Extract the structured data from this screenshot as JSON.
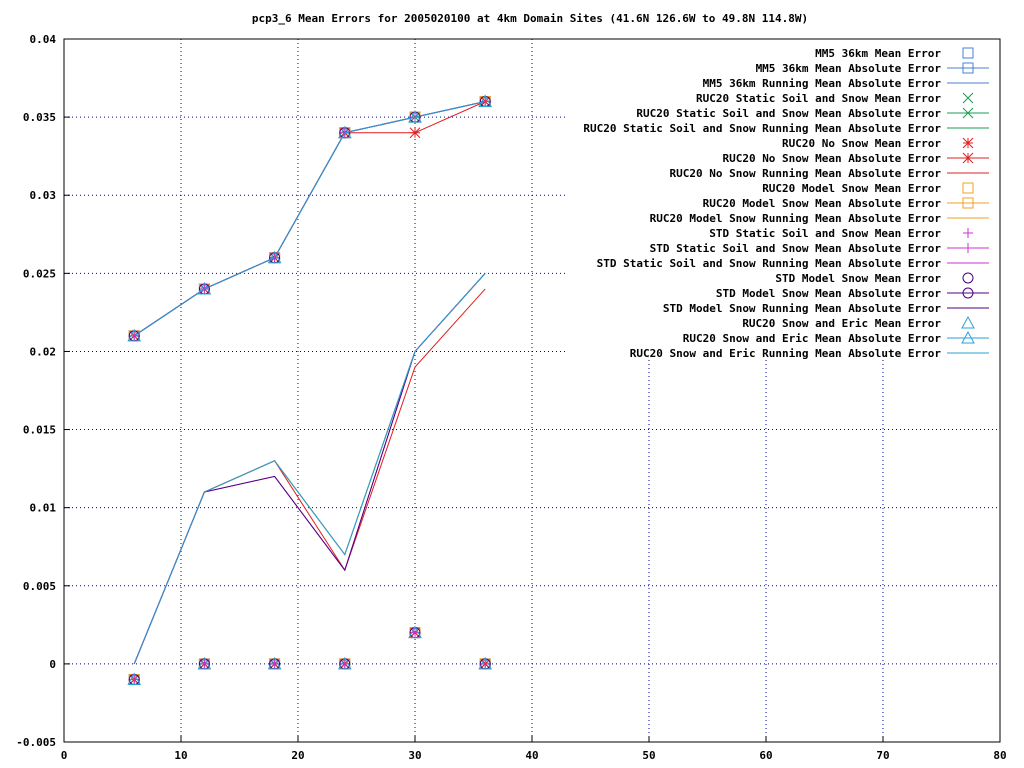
{
  "chart_data": {
    "type": "line",
    "title": "pcp3_6 Mean Errors for 2005020100 at 4km Domain Sites (41.6N 126.6W to 49.8N 114.8W)",
    "xlabel": "",
    "ylabel": "",
    "xlim": [
      0,
      80
    ],
    "ylim": [
      -0.005,
      0.04
    ],
    "xticks": [
      0,
      10,
      20,
      30,
      40,
      50,
      60,
      70,
      80
    ],
    "yticks": [
      -0.005,
      0,
      0.005,
      0.01,
      0.015,
      0.02,
      0.025,
      0.03,
      0.035,
      0.04
    ],
    "ytick_labels": [
      "-0.005",
      "0",
      "0.005",
      "0.01",
      "0.015",
      "0.02",
      "0.025",
      "0.03",
      "0.035",
      "0.04"
    ],
    "grid": true,
    "legend_position": "top-right",
    "x": [
      6,
      12,
      18,
      24,
      30,
      36
    ],
    "series": [
      {
        "name": "MM5 36km Mean Error",
        "style": "points",
        "marker": "square",
        "color": "#4a7fd4",
        "values": [
          -0.001,
          0,
          0,
          0,
          0.002,
          0
        ]
      },
      {
        "name": "MM5 36km Mean Absolute Error",
        "style": "linespoints",
        "marker": "square",
        "color": "#4a7fd4",
        "values": [
          0.021,
          0.024,
          0.026,
          0.034,
          0.035,
          0.036
        ]
      },
      {
        "name": "MM5 36km Running Mean Absolute Error",
        "style": "line",
        "marker": "none",
        "color": "#4a7fd4",
        "values": [
          0,
          0.011,
          0.013,
          0.007,
          0.02,
          0.025
        ]
      },
      {
        "name": "RUC20 Static Soil and Snow Mean Error",
        "style": "points",
        "marker": "x",
        "color": "#1a9e50",
        "values": [
          -0.001,
          0,
          0,
          0,
          0.002,
          0
        ]
      },
      {
        "name": "RUC20 Static Soil and Snow Mean Absolute Error",
        "style": "linespoints",
        "marker": "x",
        "color": "#1a9e50",
        "values": [
          0.021,
          0.024,
          0.026,
          0.034,
          0.035,
          0.036
        ]
      },
      {
        "name": "RUC20 Static Soil and Snow Running Mean Absolute Error",
        "style": "line",
        "marker": "none",
        "color": "#1a9e50",
        "values": [
          0,
          0.011,
          0.013,
          0.007,
          0.02,
          0.025
        ]
      },
      {
        "name": "RUC20 No Snow Mean Error",
        "style": "points",
        "marker": "star",
        "color": "#e02020",
        "values": [
          -0.001,
          0,
          0,
          0,
          0.002,
          0
        ]
      },
      {
        "name": "RUC20 No Snow Mean Absolute Error",
        "style": "linespoints",
        "marker": "star",
        "color": "#e02020",
        "values": [
          0.021,
          0.024,
          0.026,
          0.034,
          0.034,
          0.036
        ]
      },
      {
        "name": "RUC20 No Snow Running Mean Absolute Error",
        "style": "line",
        "marker": "none",
        "color": "#e02020",
        "values": [
          0,
          0.011,
          0.013,
          0.006,
          0.019,
          0.024
        ]
      },
      {
        "name": "RUC20 Model Snow Mean Error",
        "style": "points",
        "marker": "square",
        "color": "#f0a020",
        "values": [
          -0.001,
          0,
          0,
          0,
          0.002,
          0
        ]
      },
      {
        "name": "RUC20 Model Snow Mean Absolute Error",
        "style": "linespoints",
        "marker": "square",
        "color": "#f0a020",
        "values": [
          0.021,
          0.024,
          0.026,
          0.034,
          0.035,
          0.036
        ]
      },
      {
        "name": "RUC20 Model Snow Running Mean Absolute Error",
        "style": "line",
        "marker": "none",
        "color": "#f0a020",
        "values": [
          0,
          0.011,
          0.013,
          0.007,
          0.02,
          0.025
        ]
      },
      {
        "name": "STD Static Soil and Snow Mean Error",
        "style": "points",
        "marker": "plus",
        "color": "#d030d0",
        "values": [
          -0.001,
          0,
          0,
          0,
          0.002,
          0
        ]
      },
      {
        "name": "STD Static Soil and Snow Mean Absolute Error",
        "style": "linespoints",
        "marker": "plus",
        "color": "#d030d0",
        "values": [
          0.021,
          0.024,
          0.026,
          0.034,
          0.035,
          0.036
        ]
      },
      {
        "name": "STD Static Soil and Snow Running Mean Absolute Error",
        "style": "line",
        "marker": "none",
        "color": "#d030d0",
        "values": [
          0,
          0.011,
          0.012,
          0.006,
          0.02,
          0.025
        ]
      },
      {
        "name": "STD Model Snow Mean Error",
        "style": "points",
        "marker": "circle",
        "color": "#500080",
        "values": [
          -0.001,
          0,
          0,
          0,
          0.002,
          0
        ]
      },
      {
        "name": "STD Model Snow Mean Absolute Error",
        "style": "linespoints",
        "marker": "circle",
        "color": "#500080",
        "values": [
          0.021,
          0.024,
          0.026,
          0.034,
          0.035,
          0.036
        ]
      },
      {
        "name": "STD Model Snow Running Mean Absolute Error",
        "style": "line",
        "marker": "none",
        "color": "#500080",
        "values": [
          0,
          0.011,
          0.012,
          0.006,
          0.02,
          0.025
        ]
      },
      {
        "name": "RUC20 Snow and Eric Mean Error",
        "style": "points",
        "marker": "triangle",
        "color": "#2aa0d8",
        "values": [
          -0.001,
          0,
          0,
          0,
          0.002,
          0
        ]
      },
      {
        "name": "RUC20 Snow and Eric Mean Absolute Error",
        "style": "linespoints",
        "marker": "triangle",
        "color": "#2aa0d8",
        "values": [
          0.021,
          0.024,
          0.026,
          0.034,
          0.035,
          0.036
        ]
      },
      {
        "name": "RUC20 Snow and Eric Running Mean Absolute Error",
        "style": "line",
        "marker": "none",
        "color": "#2aa0d8",
        "values": [
          0,
          0.011,
          0.013,
          0.007,
          0.02,
          0.025
        ]
      }
    ]
  }
}
